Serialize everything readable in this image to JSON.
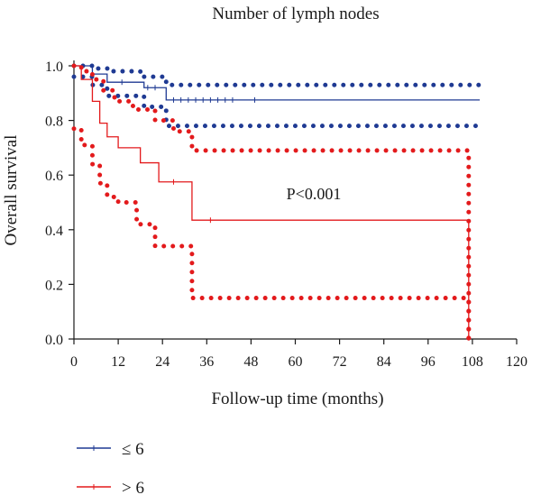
{
  "chart_data": {
    "type": "line",
    "title": "Number of lymph nodes",
    "xlabel": "Follow-up time (months)",
    "ylabel": "Overall survival",
    "xlim": [
      0,
      120
    ],
    "ylim": [
      0,
      1.0
    ],
    "xticks": [
      "0",
      "12",
      "24",
      "36",
      "48",
      "60",
      "72",
      "84",
      "96",
      "108",
      "120"
    ],
    "yticks": [
      "0.0",
      "0.2",
      "0.4",
      "0.6",
      "0.8",
      "1.0"
    ],
    "annotation": "P<0.001",
    "grid": false,
    "legend_position": "bottom-left",
    "series": [
      {
        "name": "≤ 6",
        "color": "#1f3a93",
        "survival": [
          [
            0,
            1.0
          ],
          [
            5,
            0.97
          ],
          [
            9,
            0.94
          ],
          [
            19,
            0.92
          ],
          [
            25,
            0.875
          ],
          [
            110,
            0.875
          ]
        ],
        "censored": [
          [
            13,
            0.94
          ],
          [
            20,
            0.92
          ],
          [
            22,
            0.92
          ],
          [
            27,
            0.875
          ],
          [
            29,
            0.875
          ],
          [
            31,
            0.875
          ],
          [
            33,
            0.875
          ],
          [
            35,
            0.875
          ],
          [
            37,
            0.875
          ],
          [
            39,
            0.875
          ],
          [
            41,
            0.875
          ],
          [
            43,
            0.875
          ],
          [
            49,
            0.875
          ]
        ],
        "ci_upper": [
          [
            0,
            1.0
          ],
          [
            6,
            0.99
          ],
          [
            10,
            0.98
          ],
          [
            18,
            0.96
          ],
          [
            25,
            0.93
          ],
          [
            110,
            0.93
          ]
        ],
        "ci_lower": [
          [
            0,
            0.96
          ],
          [
            5,
            0.93
          ],
          [
            9,
            0.89
          ],
          [
            19,
            0.85
          ],
          [
            25,
            0.78
          ],
          [
            110,
            0.78
          ]
        ]
      },
      {
        "name": "> 6",
        "color": "#e31a1c",
        "survival": [
          [
            0,
            1.0
          ],
          [
            2,
            0.95
          ],
          [
            5,
            0.87
          ],
          [
            7,
            0.79
          ],
          [
            9,
            0.74
          ],
          [
            12,
            0.7
          ],
          [
            18,
            0.645
          ],
          [
            23,
            0.575
          ],
          [
            32,
            0.435
          ],
          [
            107,
            0.435
          ],
          [
            107,
            0.0
          ]
        ],
        "censored": [
          [
            27,
            0.575
          ],
          [
            37,
            0.435
          ]
        ],
        "ci_upper": [
          [
            0,
            1.0
          ],
          [
            2,
            0.98
          ],
          [
            5,
            0.95
          ],
          [
            8,
            0.91
          ],
          [
            11,
            0.87
          ],
          [
            16,
            0.84
          ],
          [
            22,
            0.8
          ],
          [
            27,
            0.76
          ],
          [
            32,
            0.69
          ],
          [
            107,
            0.69
          ],
          [
            107,
            0.0
          ]
        ],
        "ci_lower": [
          [
            0,
            0.77
          ],
          [
            2,
            0.71
          ],
          [
            5,
            0.64
          ],
          [
            7,
            0.57
          ],
          [
            9,
            0.52
          ],
          [
            12,
            0.5
          ],
          [
            17,
            0.42
          ],
          [
            22,
            0.34
          ],
          [
            32,
            0.15
          ],
          [
            107,
            0.15
          ],
          [
            107,
            0.0
          ]
        ]
      }
    ]
  }
}
